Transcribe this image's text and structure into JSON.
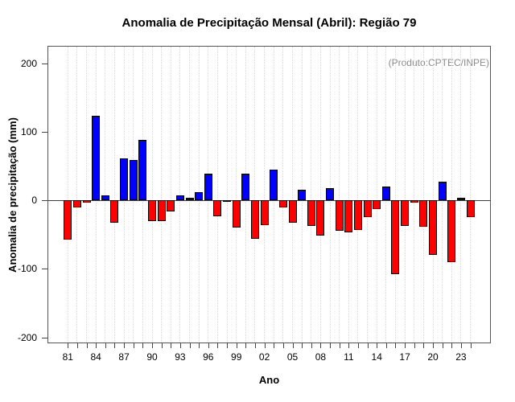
{
  "header": {
    "title": "Anomalia de Precipitação Mensal (Abril): Região 79",
    "annotation": "(Produto:CPTEC/INPE)"
  },
  "chart_data": {
    "type": "bar",
    "title": "Anomalia de Precipitação Mensal (Abril): Região 79",
    "xlabel": "Ano",
    "ylabel": "Anomalia de precipitação (mm)",
    "annotation": "(Produto:CPTEC/INPE)",
    "ylim": [
      -200,
      200
    ],
    "y_ticks": [
      200,
      100,
      0,
      -100,
      -200
    ],
    "x_tick_labels": [
      "81",
      "84",
      "87",
      "90",
      "93",
      "96",
      "99",
      "02",
      "05",
      "08",
      "11",
      "14",
      "17",
      "20",
      "23"
    ],
    "x_tick_label_every": 3,
    "grid": "vertical-dotted",
    "legend_position": "none",
    "positive_color": "#0000ff",
    "negative_color": "#ff0000",
    "years": [
      1981,
      1982,
      1983,
      1984,
      1985,
      1986,
      1987,
      1988,
      1989,
      1990,
      1991,
      1992,
      1993,
      1994,
      1995,
      1996,
      1997,
      1998,
      1999,
      2000,
      2001,
      2002,
      2003,
      2004,
      2005,
      2006,
      2007,
      2008,
      2009,
      2010,
      2011,
      2012,
      2013,
      2014,
      2015,
      2016,
      2017,
      2018,
      2019,
      2020,
      2021,
      2022,
      2023,
      2024
    ],
    "values": [
      -57,
      -11,
      -4,
      123,
      7,
      -33,
      61,
      59,
      88,
      -30,
      -31,
      -17,
      7,
      4,
      12,
      39,
      -23,
      -1,
      -40,
      39,
      -56,
      -36,
      45,
      -10,
      -33,
      15,
      -38,
      -52,
      18,
      -45,
      -47,
      -43,
      -25,
      -13,
      20,
      -108,
      -38,
      -3,
      -39,
      -80,
      27,
      -90,
      4,
      -25
    ]
  }
}
